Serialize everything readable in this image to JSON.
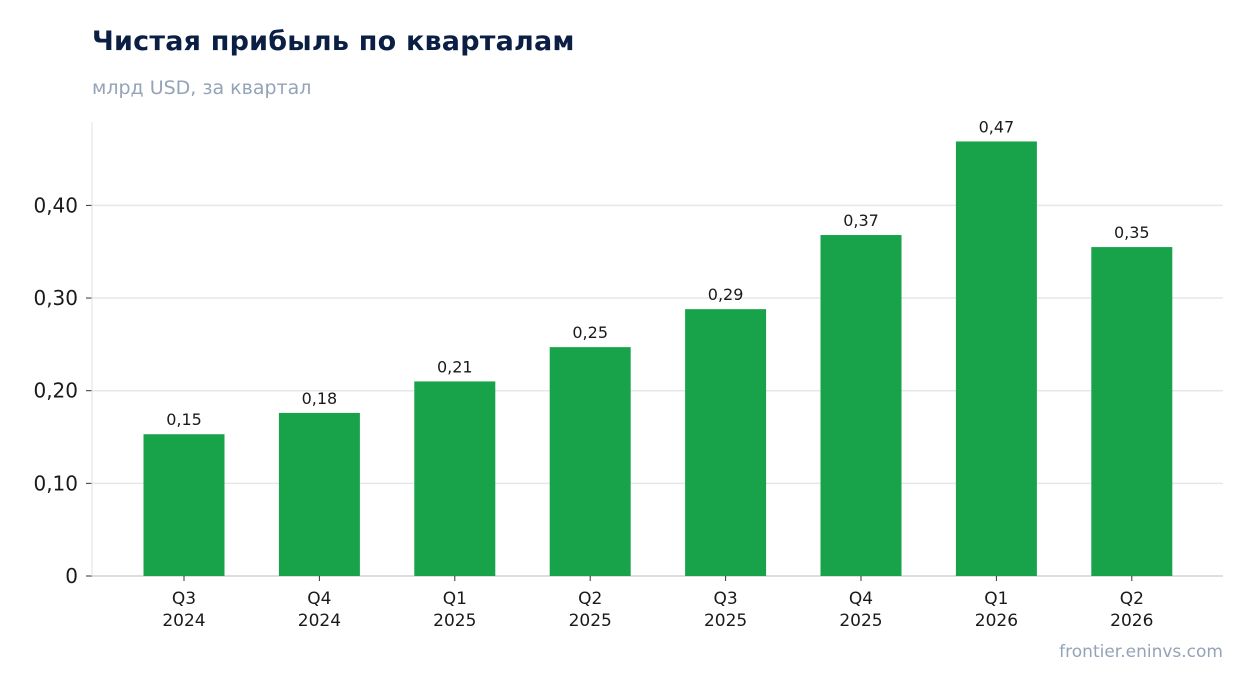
{
  "chart_data": {
    "type": "bar",
    "title": "Чистая прибыль по кварталам",
    "subtitle": "млрд USD, за квартал",
    "categories": [
      [
        "Q3",
        "2024"
      ],
      [
        "Q4",
        "2024"
      ],
      [
        "Q1",
        "2025"
      ],
      [
        "Q2",
        "2025"
      ],
      [
        "Q3",
        "2025"
      ],
      [
        "Q4",
        "2025"
      ],
      [
        "Q1",
        "2026"
      ],
      [
        "Q2",
        "2026"
      ]
    ],
    "values": [
      0.153,
      0.176,
      0.21,
      0.247,
      0.288,
      0.368,
      0.469,
      0.355
    ],
    "data_labels": [
      "0,15",
      "0,18",
      "0,21",
      "0,25",
      "0,29",
      "0,37",
      "0,47",
      "0,35"
    ],
    "yticks": [
      0,
      0.1,
      0.2,
      0.3,
      0.4
    ],
    "ytick_labels": [
      "0",
      "0,10",
      "0,20",
      "0,30",
      "0,40"
    ],
    "ylim": [
      0,
      0.49
    ],
    "grid": true,
    "bar_color": "#18a34a",
    "grid_color": "#e5e7eb"
  },
  "footer": {
    "source": "frontier.eninvs.com"
  }
}
